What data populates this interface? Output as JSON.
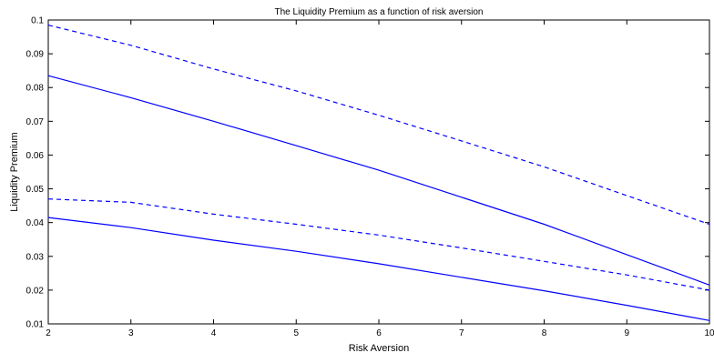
{
  "chart_data": {
    "type": "line",
    "title": "The Liquidity Premium as a function of risk aversion",
    "xlabel": "Risk Aversion",
    "ylabel": "Liquidity Premium",
    "xlim": [
      2,
      10
    ],
    "ylim": [
      0.01,
      0.1
    ],
    "xticks": [
      "2",
      "3",
      "4",
      "5",
      "6",
      "7",
      "8",
      "9",
      "10"
    ],
    "yticks": [
      "0.01",
      "0.02",
      "0.03",
      "0.04",
      "0.05",
      "0.06",
      "0.07",
      "0.08",
      "0.09",
      "0.1"
    ],
    "grid": false,
    "line_color": "#0000ff",
    "x": [
      2,
      3,
      4,
      5,
      6,
      7,
      8,
      9,
      10
    ],
    "series": [
      {
        "style": "dashed",
        "values": [
          0.0985,
          0.0925,
          0.0855,
          0.079,
          0.0718,
          0.0642,
          0.0565,
          0.048,
          0.0395
        ]
      },
      {
        "style": "solid",
        "values": [
          0.0835,
          0.077,
          0.07,
          0.0628,
          0.0555,
          0.0475,
          0.0395,
          0.0305,
          0.0215
        ]
      },
      {
        "style": "dashed",
        "values": [
          0.047,
          0.046,
          0.0425,
          0.0395,
          0.0363,
          0.0325,
          0.0285,
          0.0245,
          0.02
        ]
      },
      {
        "style": "solid",
        "values": [
          0.0415,
          0.0385,
          0.0348,
          0.0315,
          0.0278,
          0.0238,
          0.0198,
          0.0155,
          0.011
        ]
      }
    ]
  }
}
